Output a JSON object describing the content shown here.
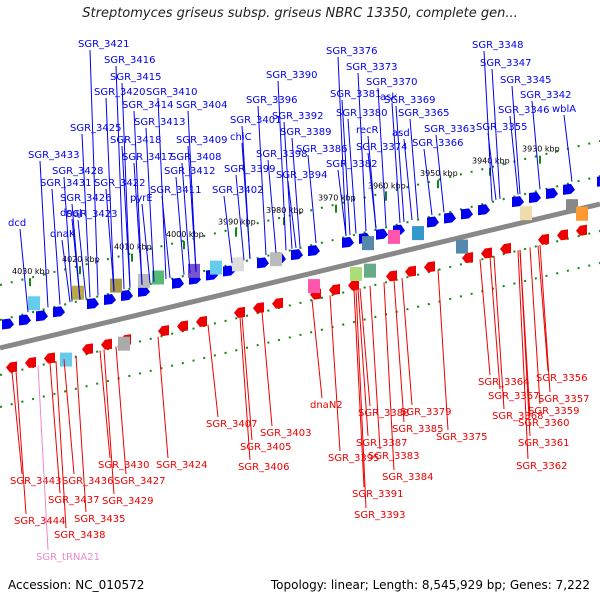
{
  "title": "Streptomyces griseus subsp. griseus NBRC 13350, complete gen...",
  "footer": {
    "accession": "Accession: NC_010572",
    "summary": "Topology: linear; Length: 8,545,929 bp; Genes: 7,222"
  },
  "colors": {
    "forward": "#0000ee",
    "reverse": "#ee0000",
    "rna": "#ee88cc",
    "backbone": "#888888",
    "tick": "#118811"
  },
  "ruler": [
    "4030 kbp",
    "4020 kbp",
    "4010 kbp",
    "4000 kbp",
    "3990 kbp",
    "3980 kbp",
    "3970 kbp",
    "3960 kbp",
    "3950 kbp",
    "3940 kbp",
    "3930 kbp"
  ],
  "top_labels": [
    "SGR_3421",
    "SGR_3416",
    "SGR_3415",
    "SGR_3420",
    "SGR_3410",
    "SGR_3414",
    "SGR_3404",
    "SGR_3425",
    "SGR_3413",
    "SGR_3401",
    "SGR_3418",
    "SGR_3409",
    "chiC",
    "SGR_3433",
    "SGR_3417",
    "SGR_3408",
    "SGR_3398",
    "SGR_3428",
    "SGR_3412",
    "SGR_3399",
    "SGR_3431",
    "SGR_3422",
    "SGR_3411",
    "SGR_3402",
    "SGR_3426",
    "pyrE",
    "SGR_3423",
    "dnaJ",
    "dnaK",
    "dcd",
    "SGR_3376",
    "SGR_3373",
    "SGR_3390",
    "SGR_3370",
    "SGR_3381",
    "ask",
    "SGR_3369",
    "SGR_3396",
    "SGR_3380",
    "SGR_3365",
    "SGR_3392",
    "asd",
    "recR",
    "SGR_3363",
    "SGR_3389",
    "SGR_3374",
    "SGR_3366",
    "SGR_3386",
    "SGR_3382",
    "SGR_3394",
    "SGR_3348",
    "SGR_3347",
    "SGR_3345",
    "SGR_3342",
    "SGR_3346",
    "wblA",
    "SGR_3355"
  ],
  "bottom_labels": [
    "SGR_3364",
    "SGR_3356",
    "SGR_3367",
    "SGR_3357",
    "SGR_3368",
    "SGR_3359",
    "SGR_3360",
    "SGR_3361",
    "SGR_3362",
    "SGR_3407",
    "SGR_3403",
    "SGR_3405",
    "SGR_3406",
    "dnaN2",
    "SGR_3388",
    "SGR_3379",
    "SGR_3385",
    "SGR_3375",
    "SGR_3387",
    "SGR_3395",
    "SGR_3383",
    "SGR_3384",
    "SGR_3391",
    "SGR_3393",
    "SGR_3430",
    "SGR_3424",
    "SGR_3443",
    "SGR_3436",
    "SGR_3427",
    "SGR_3437",
    "SGR_3429",
    "SGR_3444",
    "SGR_3435",
    "SGR_3438",
    "SGR_tRNA21"
  ]
}
